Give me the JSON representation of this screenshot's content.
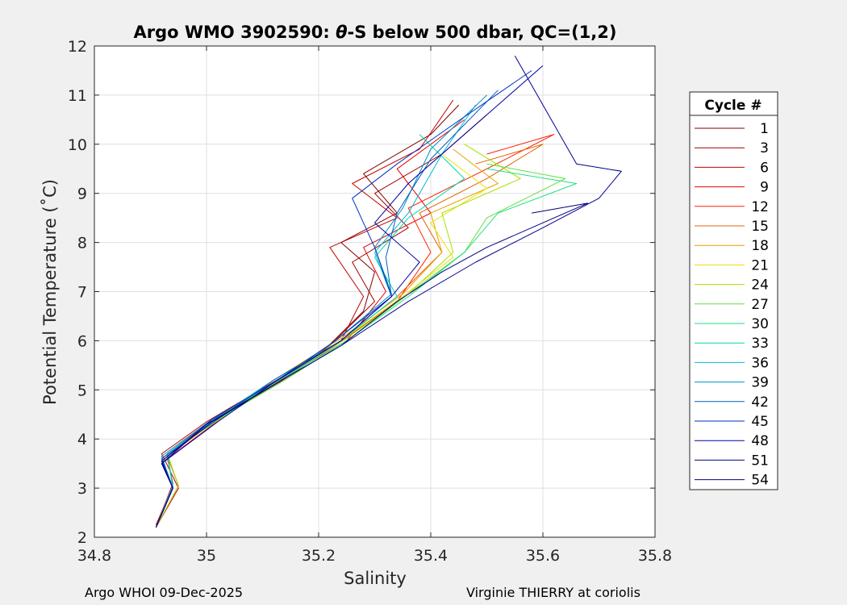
{
  "chart_data": {
    "type": "line",
    "title_prefix": "Argo WMO 3902590: ",
    "title_symbol": "θ",
    "title_suffix": "-S below 500 dbar,  QC=(1,2)",
    "xlabel": "Salinity",
    "ylabel": "Potential Temperature (˚C)",
    "xlim": [
      34.8,
      35.8
    ],
    "ylim": [
      2,
      12
    ],
    "xticks": [
      "34.8",
      "35",
      "35.2",
      "35.4",
      "35.6",
      "35.8"
    ],
    "yticks": [
      "2",
      "3",
      "4",
      "5",
      "6",
      "7",
      "8",
      "9",
      "10",
      "11",
      "12"
    ],
    "grid": true,
    "legend_placement": "outside-right",
    "legend_title": "Cycle #",
    "legend": [
      {
        "label": "1",
        "color": "#800000"
      },
      {
        "label": "3",
        "color": "#a00000"
      },
      {
        "label": "6",
        "color": "#c00000"
      },
      {
        "label": "9",
        "color": "#e00000"
      },
      {
        "label": "12",
        "color": "#ff2000"
      },
      {
        "label": "15",
        "color": "#e66000"
      },
      {
        "label": "18",
        "color": "#e8a000"
      },
      {
        "label": "21",
        "color": "#f0e000"
      },
      {
        "label": "24",
        "color": "#a8e000"
      },
      {
        "label": "27",
        "color": "#60e040"
      },
      {
        "label": "30",
        "color": "#20e080"
      },
      {
        "label": "33",
        "color": "#00d8b0"
      },
      {
        "label": "36",
        "color": "#00b8d8"
      },
      {
        "label": "39",
        "color": "#0090c8"
      },
      {
        "label": "42",
        "color": "#0060c0"
      },
      {
        "label": "45",
        "color": "#0030c0"
      },
      {
        "label": "48",
        "color": "#0000a0"
      },
      {
        "label": "51",
        "color": "#000080"
      },
      {
        "label": "54",
        "color": "#00008c"
      }
    ],
    "series": [
      {
        "color": "#800000",
        "x": [
          34.91,
          34.94,
          34.92,
          35.0,
          35.1,
          35.2,
          35.28,
          35.3,
          35.24,
          35.34,
          35.28,
          35.4,
          35.45
        ],
        "y": [
          2.2,
          3.0,
          3.6,
          4.3,
          5.0,
          5.7,
          6.6,
          7.4,
          8.0,
          8.6,
          9.4,
          10.2,
          10.8
        ]
      },
      {
        "color": "#a00000",
        "x": [
          34.91,
          34.94,
          34.93,
          35.02,
          35.12,
          35.22,
          35.3,
          35.26,
          35.36,
          35.3,
          35.42,
          35.5
        ],
        "y": [
          2.25,
          3.05,
          3.65,
          4.4,
          5.1,
          5.9,
          6.8,
          7.6,
          8.3,
          9.0,
          9.8,
          10.6
        ]
      },
      {
        "color": "#c00000",
        "x": [
          34.91,
          34.95,
          34.92,
          35.0,
          35.14,
          35.24,
          35.28,
          35.22,
          35.34,
          35.26,
          35.38,
          35.44
        ],
        "y": [
          2.2,
          3.0,
          3.7,
          4.35,
          5.3,
          6.0,
          6.9,
          7.9,
          8.5,
          9.2,
          9.9,
          10.9
        ]
      },
      {
        "color": "#e00000",
        "x": [
          34.91,
          34.94,
          34.93,
          35.03,
          35.13,
          35.25,
          35.32,
          35.28,
          35.4,
          35.34,
          35.46
        ],
        "y": [
          2.2,
          3.1,
          3.6,
          4.45,
          5.2,
          6.0,
          7.0,
          7.9,
          8.6,
          9.5,
          10.5
        ]
      },
      {
        "color": "#ff2000",
        "x": [
          34.91,
          34.94,
          34.93,
          35.01,
          35.12,
          35.23,
          35.34,
          35.4,
          35.36,
          35.5,
          35.62,
          35.5
        ],
        "y": [
          2.2,
          3.0,
          3.7,
          4.4,
          5.1,
          5.9,
          6.8,
          7.8,
          8.7,
          9.5,
          10.2,
          9.8
        ]
      },
      {
        "color": "#e66000",
        "x": [
          34.91,
          34.95,
          34.93,
          35.02,
          35.13,
          35.24,
          35.34,
          35.42,
          35.38,
          35.5,
          35.6,
          35.48
        ],
        "y": [
          2.2,
          3.05,
          3.65,
          4.4,
          5.15,
          6.0,
          6.9,
          7.8,
          8.6,
          9.3,
          10.0,
          9.6
        ]
      },
      {
        "color": "#e8a000",
        "x": [
          34.91,
          34.94,
          34.93,
          35.02,
          35.12,
          35.24,
          35.35,
          35.42,
          35.4,
          35.52,
          35.44
        ],
        "y": [
          2.2,
          3.0,
          3.7,
          4.45,
          5.2,
          6.05,
          6.95,
          7.8,
          8.6,
          9.2,
          9.9
        ]
      },
      {
        "color": "#f0e000",
        "x": [
          34.91,
          34.94,
          34.93,
          35.02,
          35.13,
          35.24,
          35.35,
          35.44,
          35.4,
          35.5,
          35.42
        ],
        "y": [
          2.2,
          3.0,
          3.65,
          4.4,
          5.2,
          6.0,
          6.9,
          7.7,
          8.4,
          9.1,
          9.8
        ]
      },
      {
        "color": "#a8e000",
        "x": [
          34.91,
          34.95,
          34.93,
          35.03,
          35.13,
          35.25,
          35.36,
          35.44,
          35.42,
          35.56,
          35.46
        ],
        "y": [
          2.2,
          3.05,
          3.7,
          4.45,
          5.2,
          6.05,
          6.95,
          7.8,
          8.6,
          9.3,
          10.0
        ]
      },
      {
        "color": "#60e040",
        "x": [
          34.91,
          34.94,
          34.93,
          35.02,
          35.14,
          35.25,
          35.36,
          35.46,
          35.5,
          35.64,
          35.5
        ],
        "y": [
          2.2,
          3.0,
          3.7,
          4.4,
          5.2,
          6.0,
          6.95,
          7.8,
          8.5,
          9.3,
          9.6
        ]
      },
      {
        "color": "#20e080",
        "x": [
          34.91,
          34.94,
          34.93,
          35.02,
          35.13,
          35.25,
          35.36,
          35.46,
          35.52,
          35.66,
          35.5
        ],
        "y": [
          2.2,
          3.05,
          3.7,
          4.45,
          5.2,
          6.0,
          6.9,
          7.8,
          8.6,
          9.2,
          9.5
        ]
      },
      {
        "color": "#00d8b0",
        "x": [
          34.91,
          34.94,
          34.93,
          35.02,
          35.13,
          35.24,
          35.34,
          35.3,
          35.36,
          35.46,
          35.38
        ],
        "y": [
          2.2,
          3.0,
          3.7,
          4.4,
          5.2,
          6.0,
          6.9,
          7.7,
          8.5,
          9.3,
          10.2
        ]
      },
      {
        "color": "#00b8d8",
        "x": [
          34.91,
          34.94,
          34.93,
          35.02,
          35.12,
          35.24,
          35.33,
          35.3,
          35.36,
          35.42,
          35.48
        ],
        "y": [
          2.2,
          3.05,
          3.7,
          4.45,
          5.2,
          6.0,
          6.9,
          7.8,
          8.6,
          9.8,
          10.8
        ]
      },
      {
        "color": "#0090c8",
        "x": [
          34.91,
          34.94,
          34.92,
          35.01,
          35.12,
          35.23,
          35.33,
          35.3,
          35.35,
          35.4,
          35.5
        ],
        "y": [
          2.2,
          3.0,
          3.65,
          4.4,
          5.15,
          6.0,
          6.95,
          7.9,
          8.7,
          9.9,
          11.0
        ]
      },
      {
        "color": "#0060c0",
        "x": [
          34.91,
          34.94,
          34.92,
          35.02,
          35.12,
          35.24,
          35.33,
          35.32,
          35.34,
          35.4,
          35.52
        ],
        "y": [
          2.2,
          3.0,
          3.6,
          4.4,
          5.2,
          6.0,
          6.9,
          7.7,
          8.6,
          9.7,
          11.1
        ]
      },
      {
        "color": "#0030c0",
        "x": [
          34.91,
          34.94,
          34.92,
          35.01,
          35.12,
          35.23,
          35.33,
          35.3,
          35.26,
          35.34,
          35.44,
          35.58
        ],
        "y": [
          2.2,
          3.0,
          3.55,
          4.4,
          5.15,
          6.0,
          6.9,
          7.9,
          8.9,
          9.6,
          10.4,
          11.5
        ]
      },
      {
        "color": "#0000a0",
        "x": [
          34.91,
          34.94,
          34.92,
          35.02,
          35.12,
          35.24,
          35.33,
          35.38,
          35.3,
          35.36,
          35.46,
          35.6
        ],
        "y": [
          2.2,
          3.0,
          3.5,
          4.35,
          5.15,
          6.0,
          6.9,
          7.6,
          8.4,
          9.2,
          10.2,
          11.6
        ]
      },
      {
        "color": "#000080",
        "x": [
          34.91,
          34.94,
          34.92,
          35.0,
          35.12,
          35.24,
          35.34,
          35.42,
          35.5,
          35.6,
          35.68,
          35.58
        ],
        "y": [
          2.2,
          3.0,
          3.5,
          4.3,
          5.1,
          5.9,
          6.8,
          7.4,
          7.9,
          8.4,
          8.8,
          8.6
        ]
      },
      {
        "color": "#00008c",
        "x": [
          34.91,
          34.94,
          34.92,
          35.01,
          35.12,
          35.24,
          35.36,
          35.48,
          35.6,
          35.7,
          35.74,
          35.66,
          35.55
        ],
        "y": [
          2.2,
          3.0,
          3.55,
          4.35,
          5.1,
          5.9,
          6.8,
          7.6,
          8.3,
          8.9,
          9.45,
          9.6,
          11.8
        ]
      }
    ]
  },
  "footer_left": "Argo WHOI 09-Dec-2025",
  "footer_right": "Virginie THIERRY at coriolis"
}
